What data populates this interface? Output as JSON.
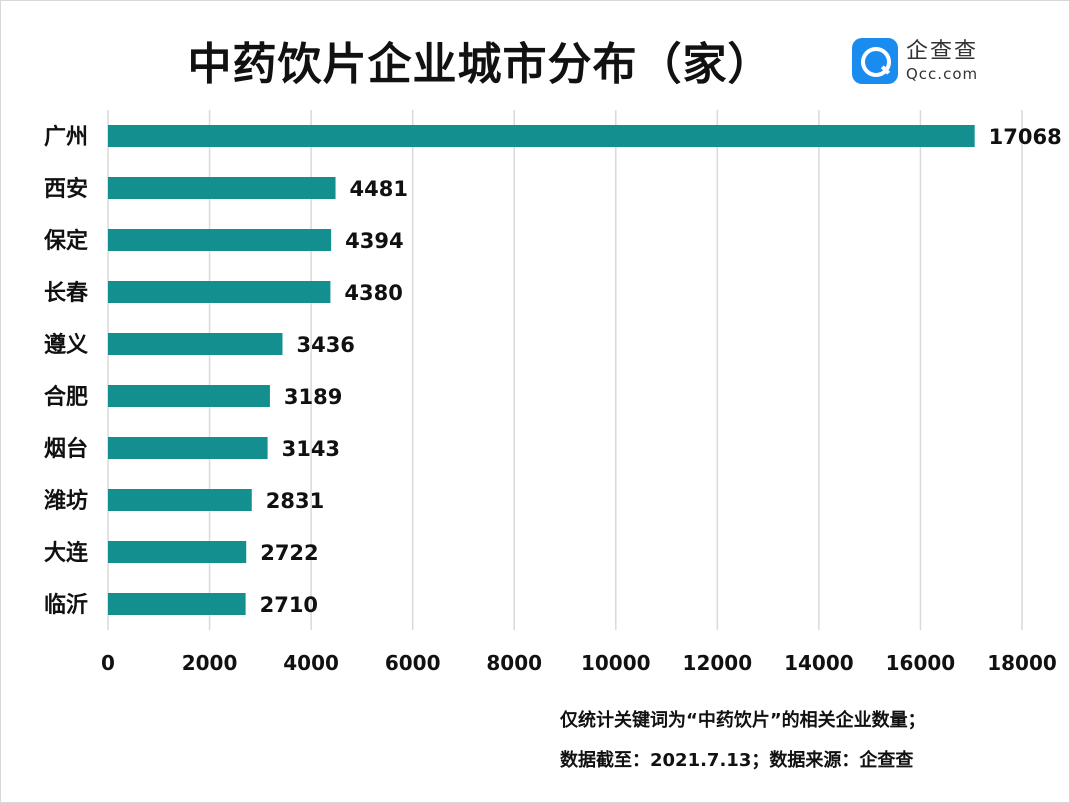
{
  "title": "中药饮片企业城市分布（家）",
  "logo": {
    "icon": "qcc-logo-icon",
    "cn": "企查查",
    "en": "Qcc.com",
    "color": "#1a8cf0"
  },
  "notes": {
    "line1": "仅统计关键词为“中药饮片”的相关企业数量；",
    "line2": "数据截至：2021.7.13；数据来源：企查查"
  },
  "chart_data": {
    "type": "bar",
    "orientation": "horizontal",
    "categories": [
      "广州",
      "西安",
      "保定",
      "长春",
      "遵义",
      "合肥",
      "烟台",
      "潍坊",
      "大连",
      "临沂"
    ],
    "values": [
      17068,
      4481,
      4394,
      4380,
      3436,
      3189,
      3143,
      2831,
      2722,
      2710
    ],
    "xlim": [
      0,
      18000
    ],
    "xticks": [
      0,
      2000,
      4000,
      6000,
      8000,
      10000,
      12000,
      14000,
      16000,
      18000
    ],
    "grid": true,
    "bar_color": "#138f8f",
    "grid_color": "#d9d9d9",
    "data_labels": true
  }
}
